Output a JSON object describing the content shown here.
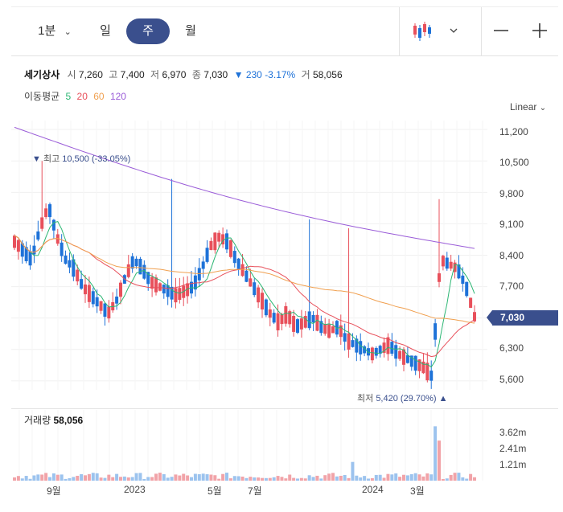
{
  "toolbar": {
    "interval_label": "1분",
    "tabs": [
      "일",
      "주",
      "월"
    ],
    "active_tab": "주",
    "zoom_out": "−",
    "zoom_in": "+"
  },
  "stock": {
    "name": "세기상사",
    "open_label": "시",
    "open": "7,260",
    "high_label": "고",
    "high": "7,400",
    "low_label": "저",
    "low": "6,970",
    "close_label": "종",
    "close": "7,030",
    "change": "230",
    "change_pct": "-3.17%",
    "volume_label": "거",
    "volume": "58,056"
  },
  "moving_average": {
    "label": "이동평균",
    "periods": [
      {
        "value": "5",
        "color": "#2bb673"
      },
      {
        "value": "20",
        "color": "#e8505b"
      },
      {
        "value": "60",
        "color": "#f0a050"
      },
      {
        "value": "120",
        "color": "#9a5cd8"
      }
    ]
  },
  "scale_mode": "Linear",
  "colors": {
    "up": "#e8505b",
    "down": "#1e72d8",
    "accent": "#3a4f8d"
  },
  "current_price_tag": "7,030",
  "annotations": {
    "high": {
      "label": "최고",
      "value": "10,500",
      "pct": "(-33.05%)"
    },
    "low": {
      "label": "최저",
      "value": "5,420",
      "pct": "(29.70%)"
    }
  },
  "volume_panel": {
    "label": "거래량",
    "value": "58,056",
    "ticks": [
      "3.62m",
      "2.41m",
      "1.21m"
    ]
  },
  "chart_data": {
    "type": "candlestick",
    "y_ticks": [
      "11,200",
      "10,500",
      "9,800",
      "9,100",
      "8,400",
      "7,700",
      "7,030",
      "6,300",
      "5,600"
    ],
    "ylim": [
      5400,
      11400
    ],
    "x_ticks": [
      "9월",
      "2023",
      "5월",
      "7월",
      "2024",
      "3월"
    ],
    "close_path": [
      8700,
      8500,
      8300,
      9000,
      9500,
      8800,
      8300,
      8100,
      7700,
      7500,
      7300,
      7100,
      7400,
      7900,
      8300,
      8100,
      7800,
      7700,
      7600,
      7500,
      7600,
      7700,
      8100,
      8600,
      8800,
      8700,
      8300,
      8000,
      7700,
      7400,
      7100,
      6900,
      7100,
      6800,
      6900,
      7000,
      6800,
      6700,
      6800,
      6500,
      6400,
      6300,
      6200,
      6300,
      6400,
      6200,
      6100,
      6000,
      5900,
      5700,
      8300,
      8200,
      8100,
      7700,
      7030
    ]
  }
}
